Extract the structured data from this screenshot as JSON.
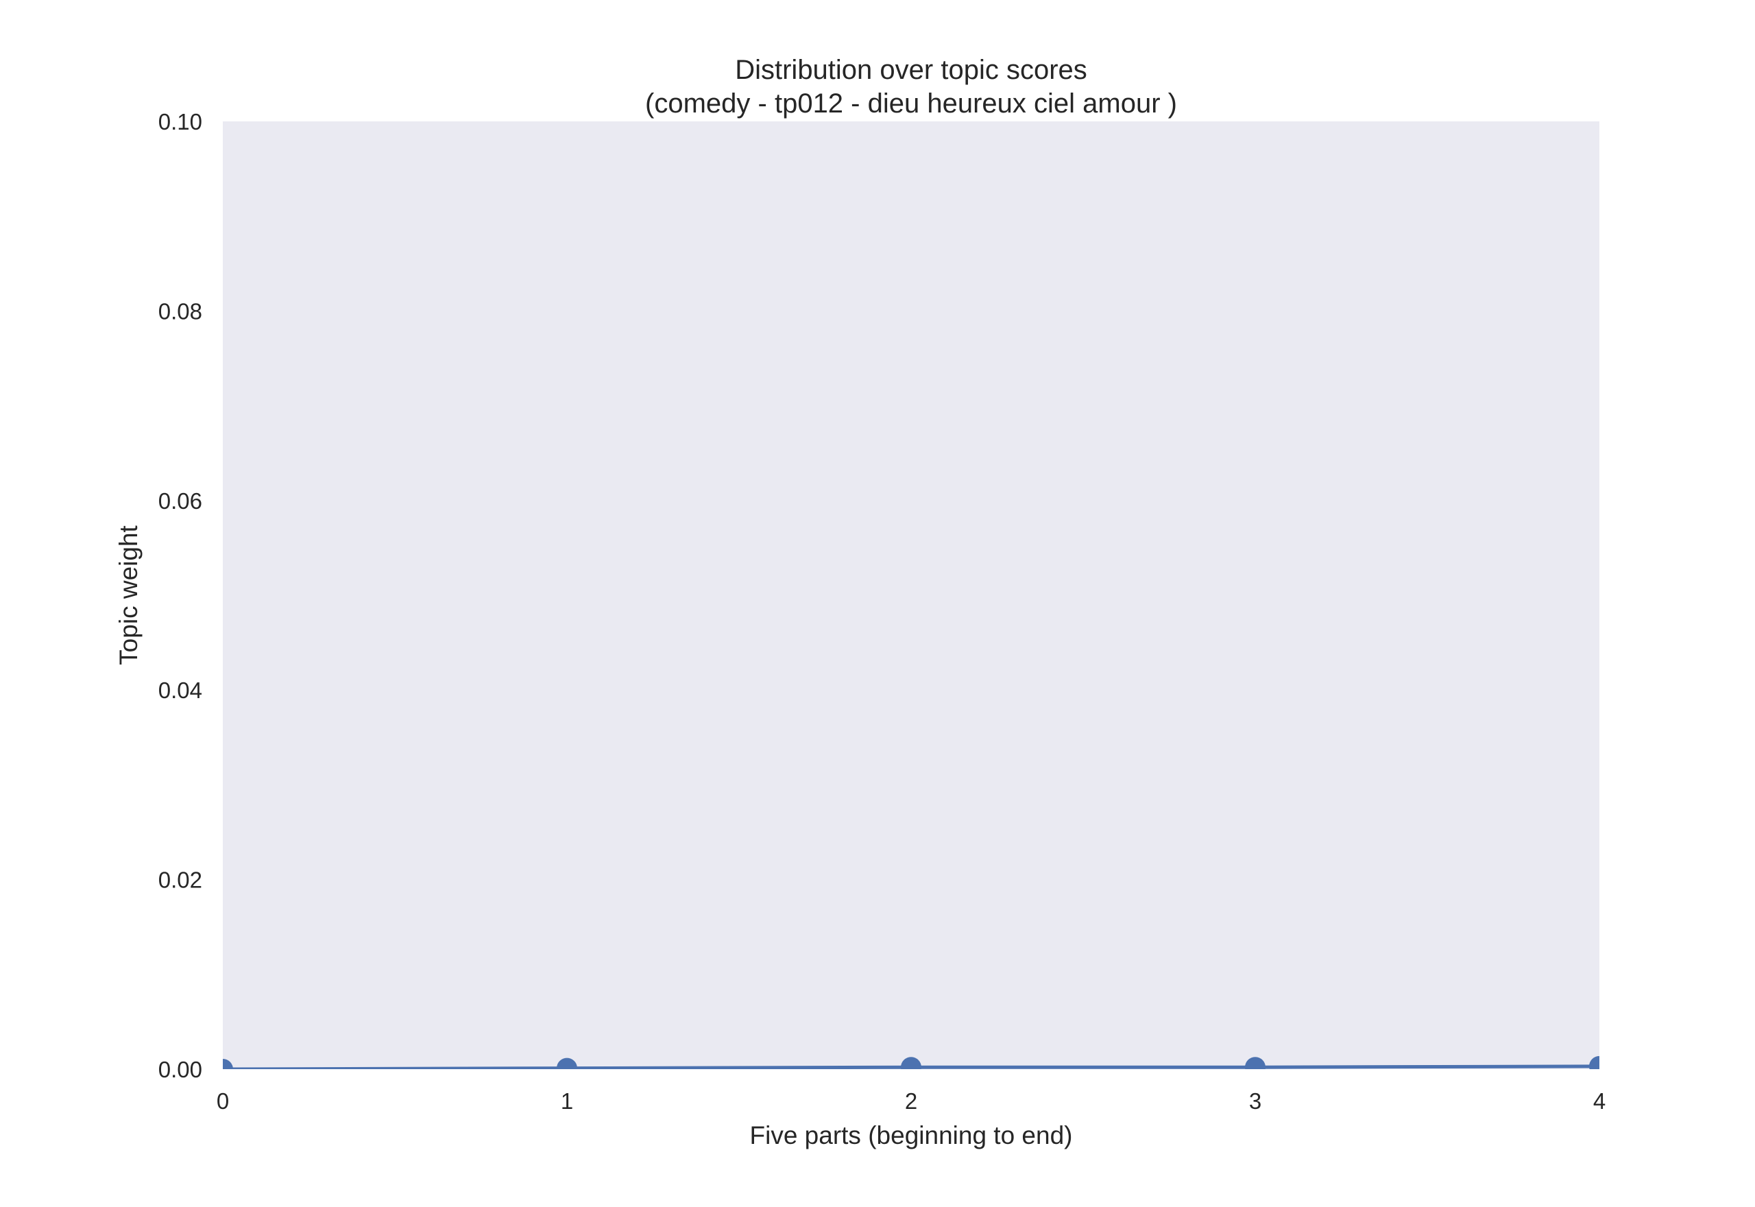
{
  "chart_data": {
    "type": "line",
    "title": "Distribution over topic scores",
    "subtitle": "(comedy - tp012 - dieu heureux ciel amour )",
    "xlabel": "Five parts (beginning to end)",
    "ylabel": "Topic weight",
    "x": [
      0,
      1,
      2,
      3,
      4
    ],
    "series": [
      {
        "values": [
          0.0,
          0.0001,
          0.0002,
          0.0002,
          0.0003
        ]
      }
    ],
    "xlim": [
      0,
      4
    ],
    "ylim": [
      0,
      0.1
    ],
    "xticks": [
      "0",
      "1",
      "2",
      "3",
      "4"
    ],
    "yticks": [
      "0.00",
      "0.02",
      "0.04",
      "0.06",
      "0.08",
      "0.10"
    ],
    "grid": false,
    "legend": "none",
    "colors": {
      "line": "#4c72b0",
      "plot_background": "#eaeaf2",
      "text": "#262626"
    }
  }
}
